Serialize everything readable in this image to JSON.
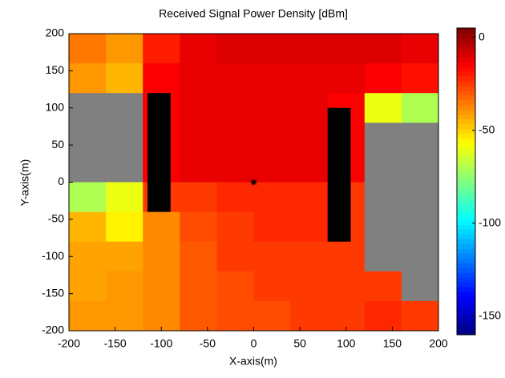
{
  "chart_data": {
    "type": "heatmap",
    "title": "Received Signal Power Density [dBm]",
    "xlabel": "X-axis(m)",
    "ylabel": "Y-axis(m)",
    "xlim": [
      -200,
      200
    ],
    "ylim": [
      -200,
      200
    ],
    "xticks": [
      -200,
      -150,
      -100,
      -50,
      0,
      50,
      100,
      150,
      200
    ],
    "yticks": [
      -200,
      -150,
      -100,
      -50,
      0,
      50,
      100,
      150,
      200
    ],
    "x": [
      -180,
      -140,
      -100,
      -60,
      -20,
      20,
      60,
      100,
      140,
      180
    ],
    "y": [
      180,
      140,
      100,
      60,
      20,
      -20,
      -60,
      -100,
      -140,
      -180
    ],
    "z": [
      [
        -35,
        -40,
        -20,
        -12,
        -10,
        -10,
        -10,
        -10,
        -10,
        -12
      ],
      [
        -40,
        -45,
        -15,
        -12,
        -12,
        -12,
        -12,
        -12,
        -15,
        -18
      ],
      [
        null,
        null,
        -15,
        -12,
        -12,
        -12,
        -12,
        -15,
        -60,
        -70
      ],
      [
        null,
        null,
        -15,
        -12,
        -12,
        -12,
        -12,
        -15,
        null,
        null
      ],
      [
        null,
        null,
        -15,
        -12,
        -12,
        -12,
        -12,
        -15,
        null,
        null
      ],
      [
        -70,
        -60,
        -25,
        -25,
        -22,
        -22,
        -22,
        -25,
        null,
        null
      ],
      [
        -45,
        -55,
        -38,
        -28,
        -25,
        -22,
        -22,
        -25,
        null,
        null
      ],
      [
        -42,
        -42,
        -38,
        -30,
        -25,
        -25,
        -25,
        -25,
        null,
        null
      ],
      [
        -42,
        -40,
        -38,
        -30,
        -28,
        -25,
        -25,
        -25,
        -25,
        null
      ],
      [
        -40,
        -40,
        -38,
        -30,
        -28,
        -28,
        -25,
        -25,
        -22,
        -25
      ]
    ],
    "clim": [
      -160,
      5
    ],
    "cticks": [
      0,
      -50,
      -100,
      -150
    ],
    "colormap": "jet",
    "null_color": "#808080",
    "buildings": [
      {
        "x": [
          -115,
          -90
        ],
        "y": [
          -40,
          120
        ]
      },
      {
        "x": [
          80,
          105
        ],
        "y": [
          -80,
          100
        ]
      }
    ],
    "transmitter": {
      "x": 0,
      "y": 0
    }
  }
}
